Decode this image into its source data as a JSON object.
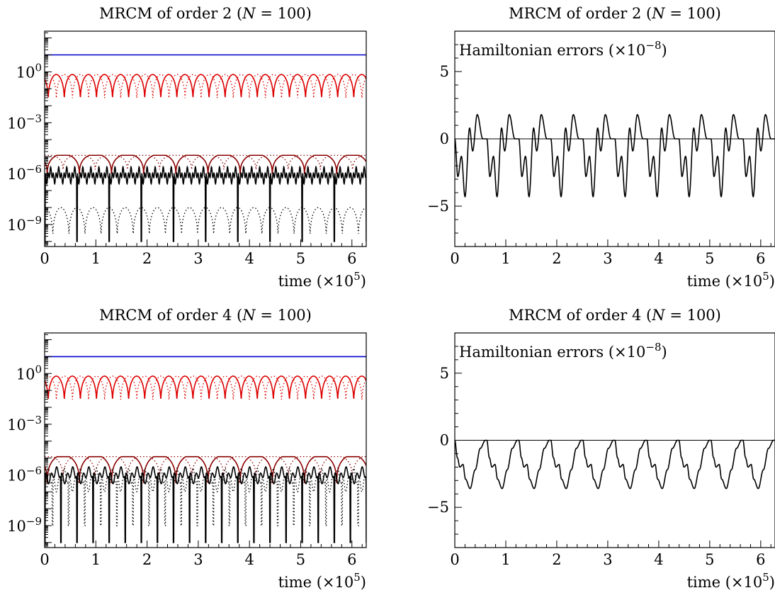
{
  "chart_data": [
    {
      "type": "line",
      "scale": "log",
      "title": "MRCM of order 2 (N = 100)",
      "xlabel": "time (×10^5)",
      "xlim": [
        0,
        6.28
      ],
      "ylim_log10": [
        -10.3,
        2.4
      ],
      "x_ticks": [
        0,
        1,
        2,
        3,
        4,
        5,
        6
      ],
      "y_ticks": [
        {
          "value": 1,
          "label": "10^0"
        },
        {
          "value": 0.001,
          "label": "10^-3"
        },
        {
          "value": 1e-06,
          "label": "10^-6"
        },
        {
          "value": 1e-09,
          "label": "10^-9"
        }
      ],
      "series": [
        {
          "color": "#0000cc",
          "style": "solid",
          "kind": "constant",
          "level": 10
        },
        {
          "color": "#dd0000",
          "style": "solid",
          "kind": "arches",
          "top": 0.7,
          "bottom": 0.012,
          "period": 0.314,
          "phase": 0.07
        },
        {
          "color": "#dd0000",
          "style": "dotted",
          "kind": "arches",
          "top": 0.7,
          "bottom": 0.012,
          "period": 0.314,
          "phase": 0.23
        },
        {
          "color": "#8b0000",
          "style": "solid",
          "kind": "bumps",
          "top": 1.2e-05,
          "bottom": 4e-07,
          "period": 0.628,
          "phase": 0.05
        },
        {
          "color": "#8b0000",
          "style": "dotted",
          "kind": "bumps",
          "top": 1.2e-05,
          "bottom": 8e-07,
          "period": 0.628,
          "phase": 0.36
        },
        {
          "color": "#000000",
          "style": "solid",
          "kind": "wiggle",
          "top": 2.5e-06,
          "bottom": 2.5e-07,
          "period": 0.157,
          "spike_period": 0.628,
          "spike_to": 1e-10,
          "phase": 0.0
        },
        {
          "color": "#000000",
          "style": "dotted",
          "kind": "low-arches",
          "top": 1e-08,
          "bottom": 1e-10,
          "period": 0.314,
          "phase": 0.16
        }
      ]
    },
    {
      "type": "line",
      "scale": "linear",
      "title": "MRCM of order 2 (N = 100)",
      "annotation": "Hamiltonian errors (×10^-8)",
      "xlabel": "time (×10^5)",
      "xlim": [
        0,
        6.28
      ],
      "ylim": [
        -8,
        8
      ],
      "x_ticks": [
        0,
        1,
        2,
        3,
        4,
        5,
        6
      ],
      "y_ticks": [
        -5,
        0,
        5
      ],
      "zero_line": true,
      "series": [
        {
          "color": "#000000",
          "style": "solid",
          "period": 0.628,
          "shape": [
            [
              0,
              0
            ],
            [
              0.06,
              -2.8
            ],
            [
              0.13,
              -1.3
            ],
            [
              0.2,
              -4.3
            ],
            [
              0.29,
              0.8
            ],
            [
              0.35,
              -0.9
            ],
            [
              0.44,
              1.8
            ],
            [
              0.55,
              0.0
            ],
            [
              0.628,
              0
            ]
          ]
        }
      ]
    },
    {
      "type": "line",
      "scale": "log",
      "title": "MRCM of order 4 (N = 100)",
      "xlabel": "time (×10^5)",
      "xlim": [
        0,
        6.28
      ],
      "ylim_log10": [
        -10.3,
        2.4
      ],
      "x_ticks": [
        0,
        1,
        2,
        3,
        4,
        5,
        6
      ],
      "y_ticks": [
        {
          "value": 1,
          "label": "10^0"
        },
        {
          "value": 0.001,
          "label": "10^-3"
        },
        {
          "value": 1e-06,
          "label": "10^-6"
        },
        {
          "value": 1e-09,
          "label": "10^-9"
        }
      ],
      "series": [
        {
          "color": "#0000cc",
          "style": "solid",
          "kind": "constant",
          "level": 10
        },
        {
          "color": "#dd0000",
          "style": "solid",
          "kind": "arches",
          "top": 0.7,
          "bottom": 0.012,
          "period": 0.314,
          "phase": 0.07
        },
        {
          "color": "#dd0000",
          "style": "dotted",
          "kind": "arches",
          "top": 0.7,
          "bottom": 0.012,
          "period": 0.314,
          "phase": 0.23
        },
        {
          "color": "#8b0000",
          "style": "solid",
          "kind": "bumps",
          "top": 1.2e-05,
          "bottom": 1e-07,
          "period": 0.628,
          "phase": 0.05
        },
        {
          "color": "#8b0000",
          "style": "dotted",
          "kind": "bumps",
          "top": 1.2e-05,
          "bottom": 2e-07,
          "period": 0.628,
          "phase": 0.36
        },
        {
          "color": "#000000",
          "style": "solid",
          "kind": "wiggle",
          "top": 3e-06,
          "bottom": 3e-07,
          "period": 0.314,
          "spike_period": 0.314,
          "spike_to": 1e-10,
          "phase": 0.0
        },
        {
          "color": "#000000",
          "style": "dotted",
          "kind": "wiggle",
          "top": 2.5e-06,
          "bottom": 1e-07,
          "period": 0.314,
          "spike_period": 0.314,
          "spike_to": 1e-09,
          "phase": 0.15
        }
      ]
    },
    {
      "type": "line",
      "scale": "linear",
      "title": "MRCM of order 4 (N = 100)",
      "annotation": "Hamiltonian errors (×10^-8)",
      "xlabel": "time (×10^5)",
      "xlim": [
        0,
        6.28
      ],
      "ylim": [
        -8,
        8
      ],
      "x_ticks": [
        0,
        1,
        2,
        3,
        4,
        5,
        6
      ],
      "y_ticks": [
        -5,
        0,
        5
      ],
      "zero_line": true,
      "series": [
        {
          "color": "#000000",
          "style": "solid",
          "period": 0.628,
          "shape": [
            [
              0,
              0
            ],
            [
              0.05,
              -1.3
            ],
            [
              0.1,
              -2.0
            ],
            [
              0.16,
              -1.8
            ],
            [
              0.21,
              -2.9
            ],
            [
              0.3,
              -3.6
            ],
            [
              0.4,
              -2.2
            ],
            [
              0.5,
              -0.6
            ],
            [
              0.6,
              0.0
            ],
            [
              0.628,
              0
            ]
          ]
        }
      ]
    }
  ]
}
